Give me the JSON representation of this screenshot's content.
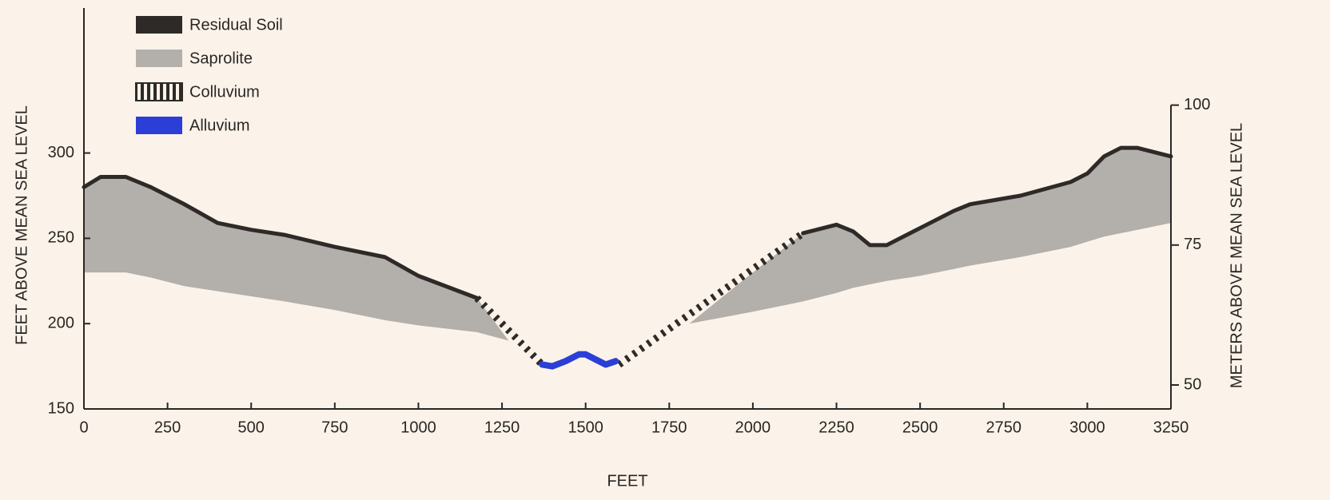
{
  "chart_data": {
    "type": "cross-section",
    "xlabel": "FEET",
    "ylabel": "FEET ABOVE MEAN SEA LEVEL",
    "y2label": "METERS ABOVE MEAN SEA LEVEL",
    "xlim": [
      0,
      3250
    ],
    "xticks": [
      0,
      250,
      500,
      750,
      1000,
      1250,
      1500,
      1750,
      2000,
      2250,
      2500,
      2750,
      3000,
      3250
    ],
    "ylim": [
      150,
      385
    ],
    "yticks": [
      150,
      200,
      250,
      300
    ],
    "y2lim": [
      45.72,
      117.35
    ],
    "y2ticks": [
      50,
      75,
      100
    ],
    "series": [
      {
        "name": "Residual Soil",
        "color": "#2e2a28",
        "kind": "line",
        "segments": [
          {
            "x": [
              0,
              50,
              125,
              200,
              300,
              400,
              500,
              600,
              750,
              900,
              1000,
              1175
            ],
            "values": [
              280,
              286,
              286,
              280,
              270,
              259,
              255,
              252,
              245,
              239,
              228,
              215
            ]
          },
          {
            "x": [
              2150,
              2250,
              2300,
              2350,
              2400,
              2500,
              2600,
              2650,
              2800,
              2950,
              3000,
              3050,
              3100,
              3150,
              3250
            ],
            "values": [
              253,
              258,
              254,
              246,
              246,
              256,
              266,
              270,
              275,
              283,
              288,
              298,
              303,
              303,
              298
            ]
          }
        ]
      },
      {
        "name": "Saprolite",
        "color": "#b3afab",
        "kind": "area",
        "segments": [
          {
            "x": [
              0,
              50,
              125,
              200,
              300,
              400,
              500,
              600,
              750,
              900,
              1000,
              1175,
              1270
            ],
            "values": [
              280,
              286,
              286,
              280,
              270,
              259,
              255,
              252,
              245,
              239,
              228,
              215,
              190
            ],
            "base": [
              230,
              230,
              230,
              227,
              222,
              219,
              216,
              213,
              208,
              202,
              199,
              195,
              190
            ]
          },
          {
            "x": [
              1810,
              2000,
              2150,
              2250,
              2300,
              2350,
              2400,
              2500,
              2600,
              2650,
              2800,
              2950,
              3000,
              3050,
              3100,
              3150,
              3250
            ],
            "values": [
              200,
              230,
              253,
              258,
              254,
              246,
              246,
              256,
              266,
              270,
              275,
              283,
              288,
              298,
              303,
              303,
              298
            ],
            "base": [
              200,
              207,
              213,
              218,
              221,
              223,
              225,
              228,
              232,
              234,
              239,
              245,
              248,
              251,
              253,
              255,
              259
            ]
          }
        ]
      },
      {
        "name": "Colluvium",
        "color": "#2e2a28",
        "kind": "hatched",
        "segments": [
          {
            "x": [
              1175,
              1370
            ],
            "values": [
              215,
              176
            ]
          },
          {
            "x": [
              1600,
              2150
            ],
            "values": [
              176,
              253
            ]
          }
        ]
      },
      {
        "name": "Alluvium",
        "color": "#2b3fd6",
        "kind": "line",
        "segments": [
          {
            "x": [
              1370,
              1400,
              1440,
              1480,
              1500,
              1530,
              1560,
              1590
            ],
            "values": [
              176,
              175,
              178,
              182,
              182,
              179,
              176,
              178
            ]
          }
        ]
      }
    ]
  }
}
